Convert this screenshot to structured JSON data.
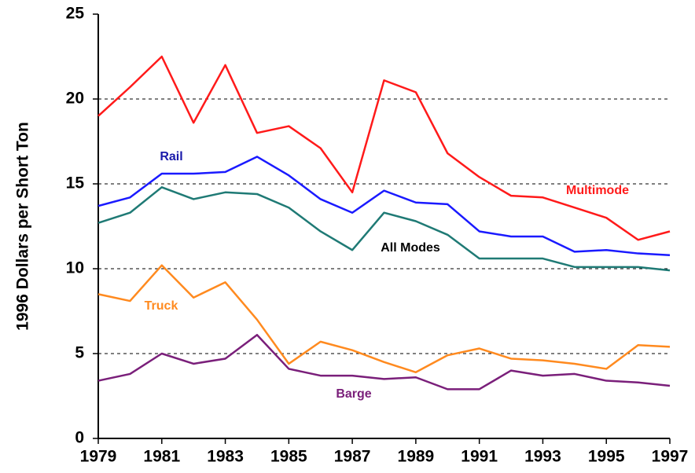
{
  "chart_data": {
    "type": "line",
    "y_label": "1996 Dollars per Short Ton",
    "x": [
      1979,
      1980,
      1981,
      1982,
      1983,
      1984,
      1985,
      1986,
      1987,
      1988,
      1989,
      1990,
      1991,
      1992,
      1993,
      1994,
      1995,
      1996,
      1997
    ],
    "xlim": [
      1979,
      1997
    ],
    "xticks": [
      1979,
      1981,
      1983,
      1985,
      1987,
      1989,
      1991,
      1993,
      1995,
      1997
    ],
    "ylim": [
      0,
      25
    ],
    "yticks": [
      0,
      5,
      10,
      15,
      20,
      25
    ],
    "grid": true,
    "series": [
      {
        "name": "Multimode",
        "color": "#ff1a1a",
        "values": [
          19.0,
          20.7,
          22.5,
          18.6,
          22.0,
          18.0,
          18.4,
          17.1,
          14.5,
          21.1,
          20.4,
          16.8,
          15.4,
          14.3,
          14.2,
          13.6,
          13.0,
          11.7,
          12.2
        ]
      },
      {
        "name": "Rail",
        "color": "#1a1aff",
        "values": [
          13.7,
          14.2,
          15.6,
          15.6,
          15.7,
          16.6,
          15.5,
          14.1,
          13.3,
          14.6,
          13.9,
          13.8,
          12.2,
          11.9,
          11.9,
          11.0,
          11.1,
          10.9,
          10.8
        ]
      },
      {
        "name": "All Modes",
        "color": "#1f7a75",
        "values": [
          12.7,
          13.3,
          14.8,
          14.1,
          14.5,
          14.4,
          13.6,
          12.2,
          11.1,
          13.3,
          12.8,
          12.0,
          10.6,
          10.6,
          10.6,
          10.1,
          10.1,
          10.1,
          9.9
        ]
      },
      {
        "name": "Truck",
        "color": "#ff8a1f",
        "values": [
          8.5,
          8.1,
          10.2,
          8.3,
          9.2,
          7.0,
          4.4,
          5.7,
          5.2,
          4.5,
          3.9,
          4.9,
          5.3,
          4.7,
          4.6,
          4.4,
          4.1,
          5.5,
          5.4
        ]
      },
      {
        "name": "Barge",
        "color": "#7a1f7a",
        "values": [
          3.4,
          3.8,
          5.0,
          4.4,
          4.7,
          6.1,
          4.1,
          3.7,
          3.7,
          3.5,
          3.6,
          2.9,
          2.9,
          4.0,
          3.7,
          3.8,
          3.4,
          3.3,
          3.1
        ]
      }
    ]
  }
}
